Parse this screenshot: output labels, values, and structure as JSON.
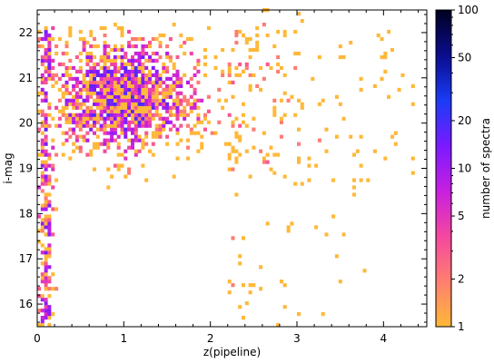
{
  "chart_data": {
    "type": "heatmap",
    "title": "",
    "xlabel": "z(pipeline)",
    "ylabel": "i-mag",
    "xlim": [
      0,
      4.5
    ],
    "ylim": [
      15.5,
      22.5
    ],
    "x_major_ticks": [
      0,
      1,
      2,
      3,
      4
    ],
    "y_major_ticks": [
      16,
      17,
      18,
      19,
      20,
      21,
      22
    ],
    "x_tick_labels": [
      "0",
      "1",
      "2",
      "3",
      "4"
    ],
    "y_tick_labels": [
      "16",
      "17",
      "18",
      "19",
      "20",
      "21",
      "22"
    ],
    "grid": false,
    "colorbar": {
      "label": "number of spectra",
      "scale": "log",
      "range": [
        1,
        100
      ],
      "ticks": [
        1,
        2,
        5,
        10,
        20,
        50,
        100
      ],
      "tick_labels": [
        "1",
        "2",
        "5",
        "10",
        "20",
        "50",
        "100"
      ],
      "colormap_stops": [
        "#ffb838",
        "#ff7f70",
        "#f5479f",
        "#c71fe0",
        "#7a1aff",
        "#1a3cf5",
        "#0a0c8c",
        "#000020"
      ]
    },
    "density_model": {
      "description_of_pixels": "2D histogram of spectra counts per (z, i-mag) bin",
      "x_bin_width": 0.04,
      "y_bin_width": 0.08,
      "core_region": {
        "z": [
          0.1,
          2.2
        ],
        "imag": [
          18.8,
          22.2
        ]
      },
      "low_z_column": {
        "z": [
          0.0,
          0.25
        ],
        "imag": [
          15.5,
          22.2
        ]
      },
      "sparse_tail_max_z": 4.4,
      "max_count": 20
    }
  }
}
